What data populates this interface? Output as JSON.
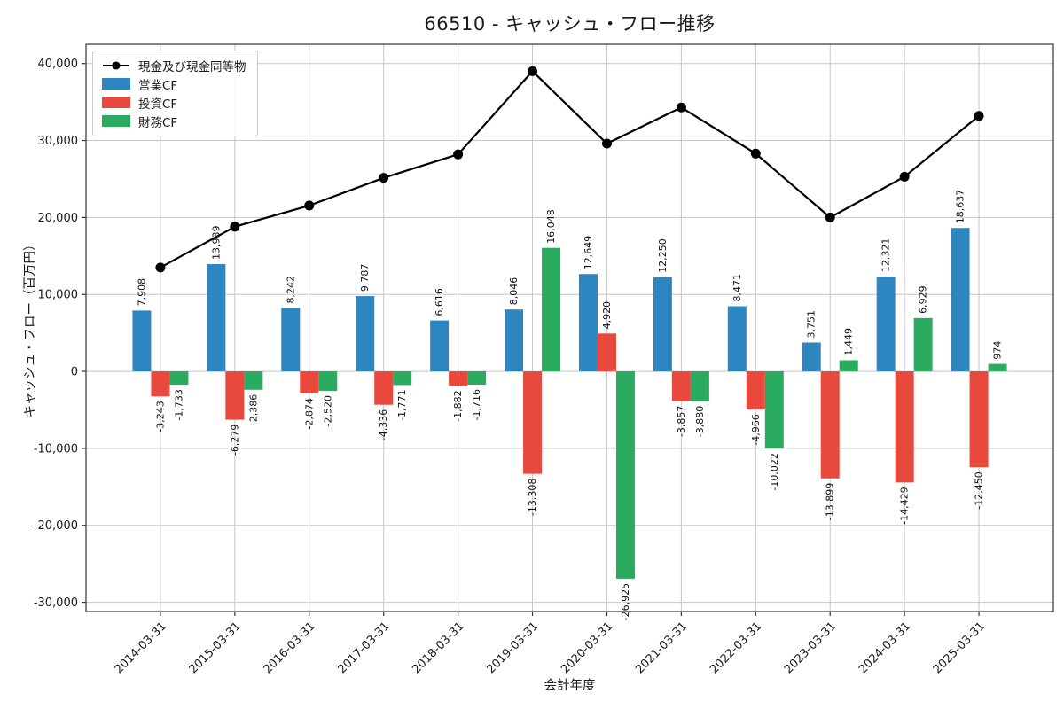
{
  "chart_data": {
    "type": "bar",
    "title": "66510 - キャッシュ・フロー推移",
    "xlabel": "会計年度",
    "ylabel": "キャッシュ・フロー（百万円）",
    "categories": [
      "2014-03-31",
      "2015-03-31",
      "2016-03-31",
      "2017-03-31",
      "2018-03-31",
      "2019-03-31",
      "2020-03-31",
      "2021-03-31",
      "2022-03-31",
      "2023-03-31",
      "2024-03-31",
      "2025-03-31"
    ],
    "series": [
      {
        "name": "営業CF",
        "key": "operating-cf",
        "type": "bar",
        "color": "#2e86c1",
        "values": [
          7908,
          13939,
          8242,
          9787,
          6616,
          8046,
          12649,
          12250,
          8471,
          3751,
          12321,
          18637
        ]
      },
      {
        "name": "投資CF",
        "key": "investing-cf",
        "type": "bar",
        "color": "#e8493c",
        "values": [
          -3243,
          -6279,
          -2874,
          -4336,
          -1882,
          -13308,
          4920,
          -3857,
          -4966,
          -13899,
          -14429,
          -12450
        ]
      },
      {
        "name": "財務CF",
        "key": "financing-cf",
        "type": "bar",
        "color": "#2aab60",
        "values": [
          -1733,
          -2386,
          -2520,
          -1771,
          -1716,
          16048,
          -26925,
          -3880,
          -10022,
          1449,
          6929,
          974
        ]
      },
      {
        "name": "現金及び現金同等物",
        "key": "cash-and-equivalents",
        "type": "line",
        "color": "#000000",
        "values": [
          13500,
          18800,
          21550,
          25150,
          28200,
          39000,
          29600,
          34300,
          28300,
          20000,
          25300,
          33200
        ]
      }
    ],
    "ylim": [
      -31200,
      42500
    ],
    "yticks": [
      40000,
      30000,
      20000,
      10000,
      0,
      -10000,
      -20000,
      -30000
    ],
    "grid": true,
    "legend_position": "upper left",
    "bar_value_labels": true
  },
  "legend": {
    "items": [
      {
        "label": "現金及び現金同等物",
        "type": "line",
        "color": "#000000"
      },
      {
        "label": "営業CF",
        "type": "patch",
        "color": "#2e86c1"
      },
      {
        "label": "投資CF",
        "type": "patch",
        "color": "#e8493c"
      },
      {
        "label": "財務CF",
        "type": "patch",
        "color": "#2aab60"
      }
    ]
  }
}
